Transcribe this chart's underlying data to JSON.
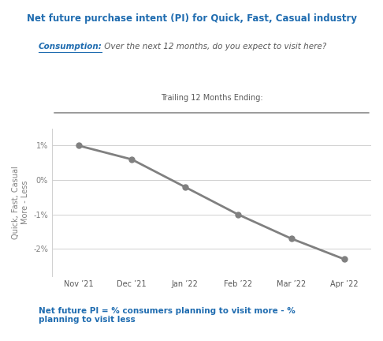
{
  "title": "Net future purchase intent (PI) for Quick, Fast, Casual industry",
  "title_color": "#1F6CB0",
  "subtitle_label": "Consumption:",
  "subtitle_label_color": "#1F6CB0",
  "subtitle_text": " Over the next 12 months, do you expect to visit here?",
  "subtitle_text_color": "#595959",
  "trailing_label": "Trailing 12 Months Ending:",
  "trailing_label_color": "#595959",
  "x_labels": [
    "Nov ’21",
    "Dec ’21",
    "Jan ’22",
    "Feb ’22",
    "Mar ’22",
    "Apr ’22"
  ],
  "y_values": [
    0.01,
    0.006,
    -0.002,
    -0.01,
    -0.017,
    -0.023
  ],
  "line_color": "#808080",
  "marker_color": "#808080",
  "ylabel_line1": "More - Less",
  "ylabel_line2": "Quick, Fast, Casual",
  "ylabel_color": "#808080",
  "yticks": [
    -0.02,
    -0.01,
    0.0,
    0.01
  ],
  "ytick_labels": [
    "-2%",
    "-1%",
    "0%",
    "1%"
  ],
  "ylim": [
    -0.028,
    0.015
  ],
  "footnote_line1": "Net future PI = % consumers planning to visit more - %",
  "footnote_line2": "planning to visit less",
  "footnote_color": "#1F6CB0",
  "background_color": "#FFFFFF",
  "grid_color": "#D0D0D0"
}
